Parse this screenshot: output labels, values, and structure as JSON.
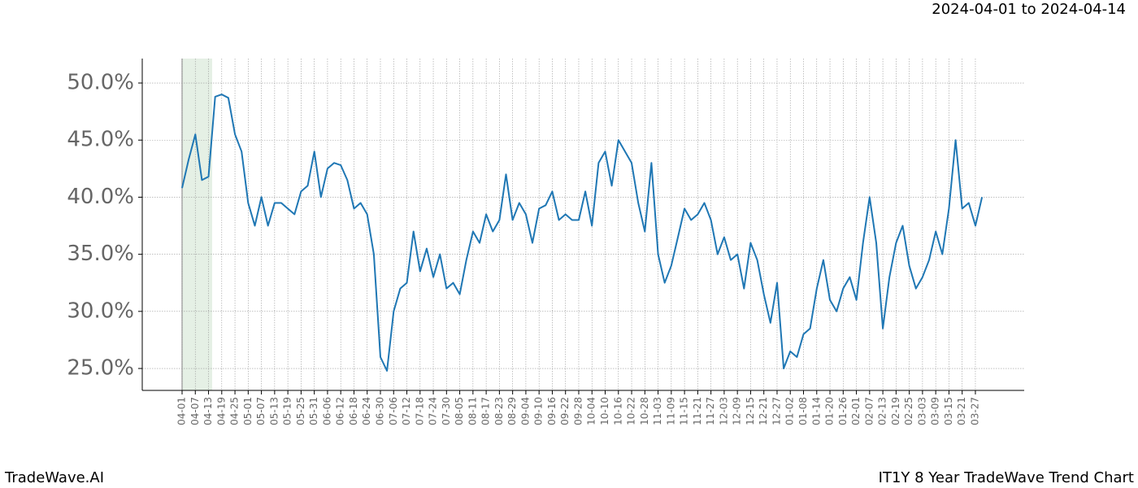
{
  "header": {
    "date_range": "2024-04-01 to 2024-04-14"
  },
  "footer": {
    "brand": "TradeWave.AI",
    "chart_name": "IT1Y 8 Year TradeWave Trend Chart"
  },
  "chart_data": {
    "type": "line",
    "categories": [
      "04-01",
      null,
      "04-07",
      null,
      "04-13",
      null,
      "04-19",
      null,
      "04-25",
      null,
      "05-01",
      null,
      "05-07",
      null,
      "05-13",
      null,
      "05-19",
      null,
      "05-25",
      null,
      "05-31",
      null,
      "06-06",
      null,
      "06-12",
      null,
      "06-18",
      null,
      "06-24",
      null,
      "06-30",
      null,
      "07-06",
      null,
      "07-12",
      null,
      "07-18",
      null,
      "07-24",
      null,
      "07-30",
      null,
      "08-05",
      null,
      "08-11",
      null,
      "08-17",
      null,
      "08-23",
      null,
      "08-29",
      null,
      "09-04",
      null,
      "09-10",
      null,
      "09-16",
      null,
      "09-22",
      null,
      "09-28",
      null,
      "10-04",
      null,
      "10-10",
      null,
      "10-16",
      null,
      "10-22",
      null,
      "10-28",
      null,
      "11-03",
      null,
      "11-09",
      null,
      "11-15",
      null,
      "11-21",
      null,
      "11-27",
      null,
      "12-03",
      null,
      "12-09",
      null,
      "12-15",
      null,
      "12-21",
      null,
      "12-27",
      null,
      "01-02",
      null,
      "01-08",
      null,
      "01-14",
      null,
      "01-20",
      null,
      "01-26",
      null,
      "02-01",
      null,
      "02-07",
      null,
      "02-13",
      null,
      "02-19",
      null,
      "02-25",
      null,
      "03-03",
      null,
      "03-09",
      null,
      "03-15",
      null,
      "03-21",
      null,
      "03-27",
      null
    ],
    "series": [
      {
        "name": "IT1Y",
        "color": "#1f77b4",
        "values": [
          40.8,
          43.3,
          45.5,
          41.5,
          41.8,
          48.8,
          49.0,
          48.7,
          45.5,
          44.0,
          39.5,
          37.5,
          40.0,
          37.5,
          39.5,
          39.5,
          39.0,
          38.5,
          40.5,
          41.0,
          44.0,
          40.0,
          42.5,
          43.0,
          42.8,
          41.5,
          39.0,
          39.5,
          38.5,
          35.0,
          26.0,
          24.8,
          30.0,
          32.0,
          32.5,
          37.0,
          33.5,
          35.5,
          33.0,
          35.0,
          32.0,
          32.5,
          31.5,
          34.5,
          37.0,
          36.0,
          38.5,
          37.0,
          38.0,
          42.0,
          38.0,
          39.5,
          38.5,
          36.0,
          39.0,
          39.3,
          40.5,
          38.0,
          38.5,
          38.0,
          38.0,
          40.5,
          37.5,
          43.0,
          44.0,
          41.0,
          45.0,
          44.0,
          43.0,
          39.5,
          37.0,
          43.0,
          35.0,
          32.5,
          34.0,
          36.5,
          39.0,
          38.0,
          38.5,
          39.5,
          38.0,
          35.0,
          36.5,
          34.5,
          35.0,
          32.0,
          36.0,
          34.5,
          31.5,
          29.0,
          32.5,
          25.0,
          26.5,
          26.0,
          28.0,
          28.5,
          32.0,
          34.5,
          31.0,
          30.0,
          32.0,
          33.0,
          31.0,
          36.0,
          40.0,
          36.0,
          28.5,
          33.0,
          36.0,
          37.5,
          34.0,
          32.0,
          33.0,
          34.5,
          37.0,
          35.0,
          39.0,
          45.0,
          39.0,
          39.5,
          37.5,
          40.0
        ]
      }
    ],
    "ylim": [
      23.08,
      52.14
    ],
    "yticks": [
      {
        "value": 25,
        "label": "25.0%"
      },
      {
        "value": 30,
        "label": "30.0%"
      },
      {
        "value": 35,
        "label": "35.0%"
      },
      {
        "value": 40,
        "label": "40.0%"
      },
      {
        "value": 45,
        "label": "45.0%"
      },
      {
        "value": 50,
        "label": "50.0%"
      }
    ],
    "grid": true
  }
}
